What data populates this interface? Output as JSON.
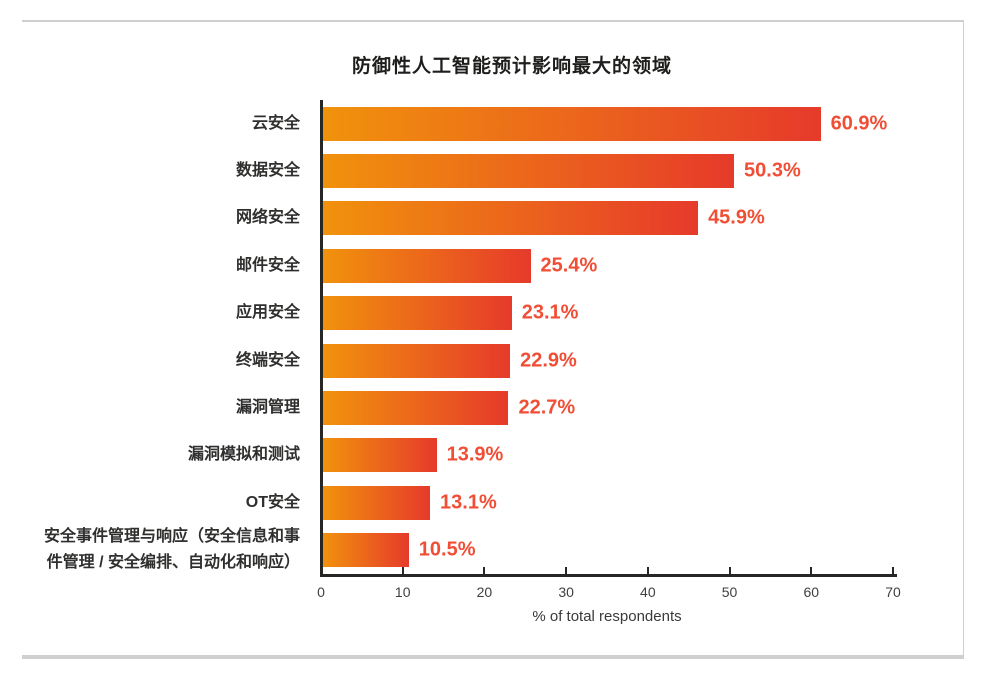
{
  "chart_data": {
    "type": "bar",
    "orientation": "horizontal",
    "title": "防御性人工智能预计影响最大的领域",
    "xlabel": "% of total respondents",
    "xlim": [
      0,
      70
    ],
    "x_ticks": [
      0,
      10,
      20,
      30,
      40,
      50,
      60,
      70
    ],
    "grid": false,
    "legend": "none",
    "categories": [
      "云安全",
      "数据安全",
      "网络安全",
      "邮件安全",
      "应用安全",
      "终端安全",
      "漏洞管理",
      "漏洞模拟和测试",
      "OT安全",
      "安全事件管理与响应（安全信息和事件管理 / 安全编排、自动化和响应）"
    ],
    "values": [
      60.9,
      50.3,
      45.9,
      25.4,
      23.1,
      22.9,
      22.7,
      13.9,
      13.1,
      10.5
    ],
    "value_labels": [
      "60.9%",
      "50.3%",
      "45.9%",
      "25.4%",
      "23.1%",
      "22.9%",
      "22.7%",
      "13.9%",
      "13.1%",
      "10.5%"
    ],
    "colors": {
      "bar_gradient_start": "#f1920c",
      "bar_gradient_end": "#e63a2b",
      "value_label": "#f04e35",
      "axis_line": "#262624",
      "category_label": "#2f2f2e",
      "tick_label": "#3f3f3e",
      "card_border": "#cfcfcf"
    }
  }
}
